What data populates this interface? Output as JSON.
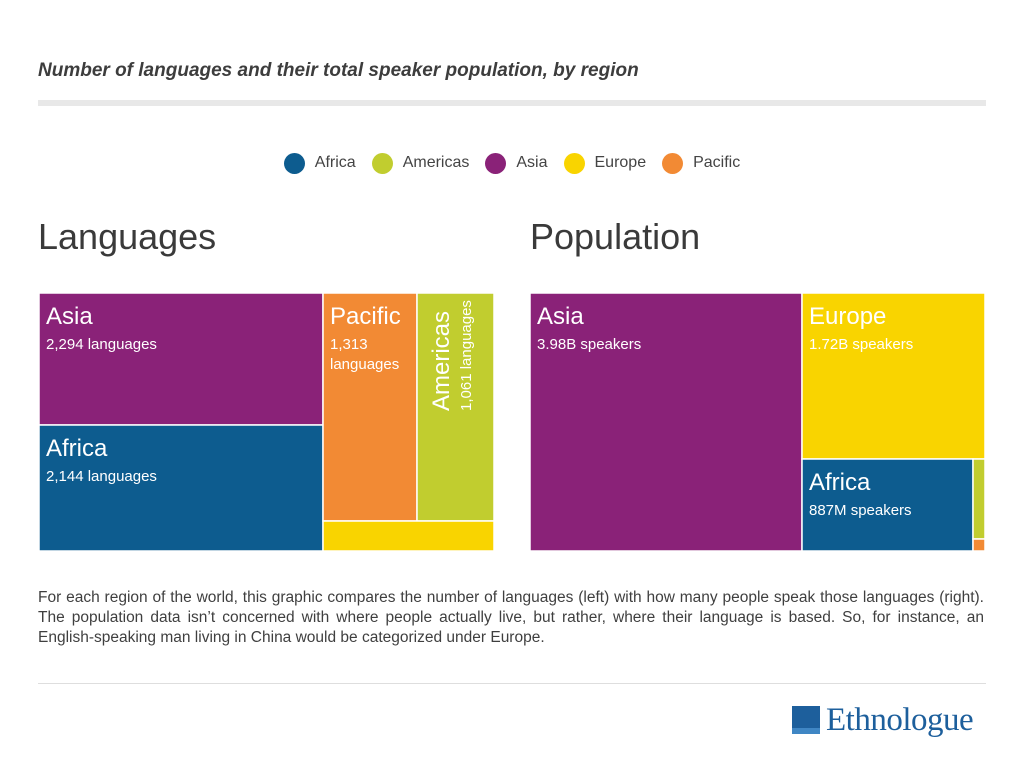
{
  "title": "Number of languages and their total speaker population, by region",
  "legend": [
    {
      "name": "Africa",
      "color": "#0d5c8f"
    },
    {
      "name": "Americas",
      "color": "#c1cd2f"
    },
    {
      "name": "Asia",
      "color": "#8a2278"
    },
    {
      "name": "Europe",
      "color": "#f9d400"
    },
    {
      "name": "Pacific",
      "color": "#f28a34"
    }
  ],
  "languages_title": "Languages",
  "population_title": "Population",
  "chart_data": [
    {
      "type": "treemap",
      "title": "Languages",
      "series": [
        {
          "name": "Asia",
          "value": 2294,
          "label": "2,294 languages",
          "color": "#8a2278"
        },
        {
          "name": "Africa",
          "value": 2144,
          "label": "2,144 languages",
          "color": "#0d5c8f"
        },
        {
          "name": "Pacific",
          "value": 1313,
          "label": "1,313 languages",
          "color": "#f28a34"
        },
        {
          "name": "Americas",
          "value": 1061,
          "label": "1,061 languages",
          "color": "#c1cd2f"
        },
        {
          "name": "Europe",
          "value": 287,
          "label": "",
          "color": "#f9d400"
        }
      ]
    },
    {
      "type": "treemap",
      "title": "Population",
      "series": [
        {
          "name": "Asia",
          "value": 3.98,
          "unit": "B",
          "label": "3.98B speakers",
          "color": "#8a2278"
        },
        {
          "name": "Europe",
          "value": 1.72,
          "unit": "B",
          "label": "1.72B speakers",
          "color": "#f9d400"
        },
        {
          "name": "Africa",
          "value": 0.887,
          "unit": "B",
          "label": "887M speakers",
          "color": "#0d5c8f"
        },
        {
          "name": "Americas",
          "value": 0.05,
          "unit": "B",
          "label": "",
          "color": "#c1cd2f"
        },
        {
          "name": "Pacific",
          "value": 0.006,
          "unit": "B",
          "label": "",
          "color": "#f28a34"
        }
      ]
    }
  ],
  "description": "For each region of the world, this graphic compares the number of languages (left) with how many people speak those languages (right). The population data isn’t concerned with where people actually live, but rather, where their language is based. So, for instance, an English-speaking man living in China would be categorized under Europe.",
  "logo_text": "Ethnologue",
  "logo_color": "#1d5f9c"
}
